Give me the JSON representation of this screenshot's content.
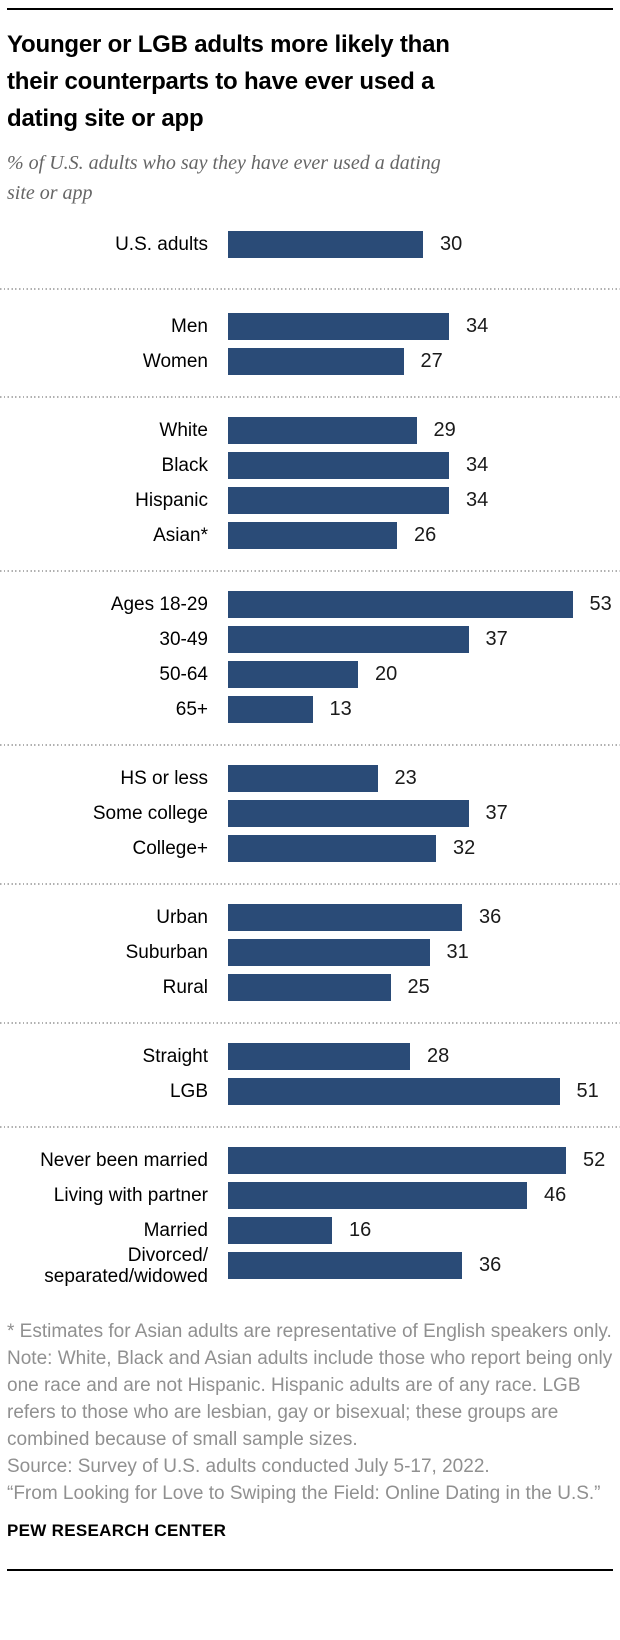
{
  "colors": {
    "bar": "#2a4b77",
    "title_text": "#000000",
    "subtitle_text": "#666666",
    "footnote_text": "#909090",
    "divider_dots": "#b0b0b0",
    "rules": "#000000"
  },
  "header": {
    "title": "Younger or LGB adults more likely than\ntheir counterparts to have ever used a\ndating site or app",
    "subtitle": "% of U.S. adults who say they have ever used a dating\nsite or app"
  },
  "chart_data": {
    "type": "bar",
    "orientation": "horizontal",
    "value_unit": "%",
    "title": "Younger or LGB adults more likely than their counterparts to have ever used a dating site or app",
    "xlabel": "",
    "ylabel": "",
    "xlim": [
      0,
      60
    ],
    "grid": false,
    "legend": false,
    "bar_color": "#2a4b77",
    "groups": [
      {
        "rows": [
          {
            "label": "U.S. adults",
            "value": 30
          }
        ]
      },
      {
        "rows": [
          {
            "label": "Men",
            "value": 34
          },
          {
            "label": "Women",
            "value": 27
          }
        ]
      },
      {
        "rows": [
          {
            "label": "White",
            "value": 29
          },
          {
            "label": "Black",
            "value": 34
          },
          {
            "label": "Hispanic",
            "value": 34
          },
          {
            "label": "Asian*",
            "value": 26
          }
        ]
      },
      {
        "rows": [
          {
            "label": "Ages 18-29",
            "value": 53
          },
          {
            "label": "30-49",
            "value": 37
          },
          {
            "label": "50-64",
            "value": 20
          },
          {
            "label": "65+",
            "value": 13
          }
        ]
      },
      {
        "rows": [
          {
            "label": "HS or less",
            "value": 23
          },
          {
            "label": "Some college",
            "value": 37
          },
          {
            "label": "College+",
            "value": 32
          }
        ]
      },
      {
        "rows": [
          {
            "label": "Urban",
            "value": 36
          },
          {
            "label": "Suburban",
            "value": 31
          },
          {
            "label": "Rural",
            "value": 25
          }
        ]
      },
      {
        "rows": [
          {
            "label": "Straight",
            "value": 28
          },
          {
            "label": "LGB",
            "value": 51
          }
        ]
      },
      {
        "rows": [
          {
            "label": "Never been married",
            "value": 52
          },
          {
            "label": "Living with partner",
            "value": 46
          },
          {
            "label": "Married",
            "value": 16
          },
          {
            "label": "Divorced/\nseparated/widowed",
            "value": 36
          }
        ]
      }
    ]
  },
  "footnotes": [
    "* Estimates for Asian adults are representative of English speakers only.",
    "Note: White, Black and Asian adults include those who report being only one race and are not Hispanic. Hispanic adults are of any race. LGB refers to those who are lesbian, gay or bisexual; these groups are combined because of small sample sizes.",
    "Source: Survey of U.S. adults conducted July 5-17, 2022.",
    "“From Looking for Love to Swiping the Field: Online Dating in the U.S.”"
  ],
  "branding": "PEW RESEARCH CENTER"
}
